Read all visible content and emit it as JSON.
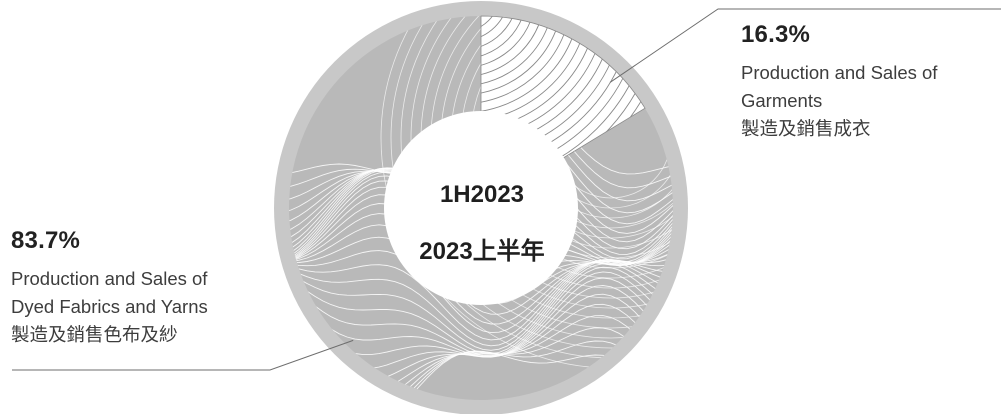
{
  "chart_data": {
    "type": "pie",
    "style": "donut",
    "center_label": [
      "1H2023",
      "2023上半年"
    ],
    "slices": [
      {
        "percent_label": "16.3%",
        "value": 16.3,
        "label_lines": [
          "Production and Sales of",
          "Garments",
          "製造及銷售成衣"
        ],
        "fill": "hatched-white"
      },
      {
        "percent_label": "83.7%",
        "value": 83.7,
        "label_lines": [
          "Production and Sales of",
          "Dyed Fabrics and Yarns",
          "製造及銷售色布及紗"
        ],
        "fill": "grey-wave"
      }
    ],
    "colors": {
      "ring": "#c8c8c8",
      "slice_major": "#b9b9b9",
      "slice_minor": "#ffffff",
      "hatch": "#8a8a8a",
      "wave": "#ffffff",
      "leader": "#6e6e6e"
    }
  }
}
